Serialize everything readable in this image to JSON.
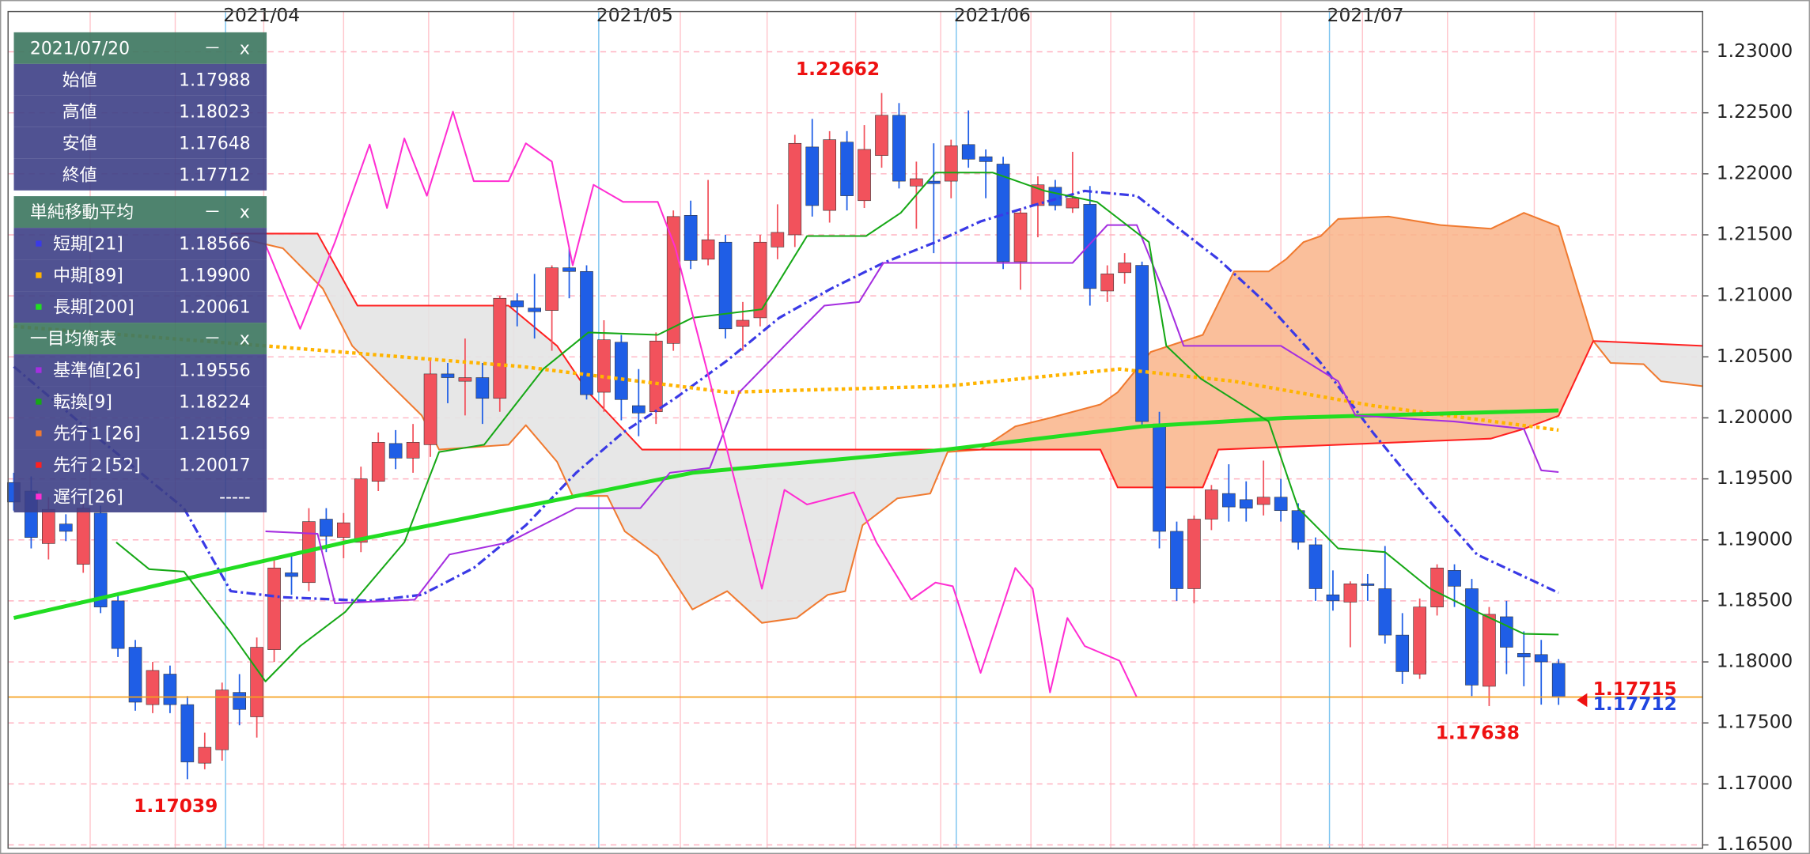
{
  "chart_data": {
    "type": "candlestick",
    "xlim": [
      -0.33,
      97.3
    ],
    "ylim": [
      1.16473,
      1.2333
    ],
    "yticks": [
      {
        "value": 1.165,
        "label": "1.16500"
      },
      {
        "value": 1.17,
        "label": "1.17000"
      },
      {
        "value": 1.175,
        "label": "1.17500"
      },
      {
        "value": 1.18,
        "label": "1.18000"
      },
      {
        "value": 1.185,
        "label": "1.18500"
      },
      {
        "value": 1.19,
        "label": "1.19000"
      },
      {
        "value": 1.195,
        "label": "1.19500"
      },
      {
        "value": 1.2,
        "label": "1.20000"
      },
      {
        "value": 1.205,
        "label": "1.20500"
      },
      {
        "value": 1.21,
        "label": "1.21000"
      },
      {
        "value": 1.215,
        "label": "1.21500"
      },
      {
        "value": 1.22,
        "label": "1.22000"
      },
      {
        "value": 1.225,
        "label": "1.22500"
      },
      {
        "value": 1.23,
        "label": "1.23000"
      }
    ],
    "xticks": [
      {
        "value": 12.2,
        "label": "2021/04"
      },
      {
        "value": 33.7,
        "label": "2021/05"
      },
      {
        "value": 54.3,
        "label": "2021/06"
      },
      {
        "value": 75.8,
        "label": "2021/07"
      }
    ],
    "xgrid": [
      4.4,
      9.3,
      14.4,
      19.0,
      23.9,
      28.8,
      38.4,
      43.4,
      48.5,
      53.4,
      58.6,
      63.2,
      68.0,
      73.0,
      77.7,
      82.6,
      87.6,
      92.3
    ],
    "grid": true,
    "up_color": "#f2525c",
    "down_color": "#1f5ee6",
    "open": [
      1.1947,
      1.194,
      1.1897,
      1.1913,
      1.188,
      1.1922,
      1.185,
      1.1812,
      1.1765,
      1.179,
      1.1765,
      1.1717,
      1.1728,
      1.1775,
      1.1755,
      1.181,
      1.1873,
      1.1865,
      1.1917,
      1.1902,
      1.1898,
      1.1948,
      1.1979,
      1.1967,
      1.1978,
      1.2036,
      1.203,
      1.2033,
      1.2016,
      1.2096,
      1.209,
      1.2088,
      1.2123,
      1.212,
      1.2021,
      1.2062,
      1.201,
      1.2005,
      1.2061,
      1.2166,
      1.213,
      1.2144,
      1.2075,
      1.2082,
      1.214,
      1.215,
      1.2222,
      1.217,
      1.2226,
      1.2178,
      1.2215,
      1.2248,
      1.219,
      1.2194,
      1.2194,
      1.2224,
      1.2214,
      1.2208,
      1.2128,
      1.2174,
      1.2189,
      1.2172,
      1.2175,
      1.2104,
      1.2119,
      1.2125,
      1.1995,
      1.1907,
      1.186,
      1.1917,
      1.1938,
      1.1933,
      1.1929,
      1.1935,
      1.1924,
      1.1896,
      1.1855,
      1.1849,
      1.1864,
      1.186,
      1.1822,
      1.179,
      1.1845,
      1.1875,
      1.186,
      1.178,
      1.1837,
      1.1807,
      1.1806,
      1.17988
    ],
    "high": [
      1.1955,
      1.1952,
      1.1935,
      1.1921,
      1.1935,
      1.1928,
      1.1856,
      1.1818,
      1.18,
      1.1797,
      1.1772,
      1.1742,
      1.1783,
      1.179,
      1.182,
      1.1885,
      1.1887,
      1.1926,
      1.1926,
      1.1922,
      1.196,
      1.1988,
      1.199,
      1.1995,
      1.2048,
      1.2045,
      1.2065,
      1.2045,
      1.21,
      1.2102,
      1.2118,
      1.2125,
      1.214,
      1.2125,
      1.208,
      1.2068,
      1.204,
      1.207,
      1.217,
      1.2178,
      1.2195,
      1.215,
      1.2095,
      1.215,
      1.2175,
      1.2232,
      1.2245,
      1.2235,
      1.2235,
      1.224,
      1.22662,
      1.2258,
      1.221,
      1.2225,
      1.2228,
      1.2252,
      1.222,
      1.2214,
      1.2172,
      1.2198,
      1.2195,
      1.2218,
      1.219,
      1.2125,
      1.2135,
      1.2128,
      1.2005,
      1.1915,
      1.192,
      1.1945,
      1.1962,
      1.1948,
      1.1965,
      1.195,
      1.193,
      1.1902,
      1.1875,
      1.1866,
      1.1872,
      1.1895,
      1.184,
      1.1852,
      1.188,
      1.188,
      1.1868,
      1.1845,
      1.185,
      1.1825,
      1.1818,
      1.18023
    ],
    "low": [
      1.1924,
      1.1893,
      1.1884,
      1.1899,
      1.1873,
      1.184,
      1.1804,
      1.176,
      1.1758,
      1.1758,
      1.17039,
      1.1712,
      1.1719,
      1.1748,
      1.1738,
      1.18,
      1.1855,
      1.1858,
      1.189,
      1.1885,
      1.189,
      1.194,
      1.1958,
      1.1955,
      1.1968,
      1.2012,
      1.2002,
      1.1995,
      1.2005,
      1.2075,
      1.2065,
      1.2055,
      1.2098,
      1.2015,
      1.2005,
      1.1998,
      1.1985,
      1.1995,
      1.2055,
      1.2122,
      1.2125,
      1.2065,
      1.2055,
      1.2075,
      1.213,
      1.214,
      1.2165,
      1.216,
      1.217,
      1.2172,
      1.2205,
      1.2188,
      1.2155,
      1.2135,
      1.218,
      1.2205,
      1.218,
      1.2122,
      1.2105,
      1.2148,
      1.217,
      1.2168,
      1.2092,
      1.2095,
      1.211,
      1.1992,
      1.1893,
      1.185,
      1.1848,
      1.1908,
      1.1915,
      1.1915,
      1.192,
      1.1915,
      1.1892,
      1.185,
      1.1842,
      1.1812,
      1.185,
      1.1815,
      1.1782,
      1.1786,
      1.1838,
      1.1845,
      1.1772,
      1.17638,
      1.179,
      1.178,
      1.1765,
      1.17648
    ],
    "close": [
      1.1931,
      1.1902,
      1.1925,
      1.1907,
      1.1926,
      1.1845,
      1.1811,
      1.1767,
      1.1793,
      1.1765,
      1.1718,
      1.173,
      1.1777,
      1.1761,
      1.1812,
      1.1877,
      1.187,
      1.1915,
      1.1903,
      1.1914,
      1.195,
      1.198,
      1.1967,
      1.198,
      1.2036,
      1.2033,
      1.2033,
      1.2016,
      1.2098,
      1.2091,
      1.2087,
      1.2123,
      1.212,
      1.2019,
      1.2064,
      1.2015,
      1.2004,
      1.2063,
      1.2165,
      1.2129,
      1.2146,
      1.2073,
      1.208,
      1.2144,
      1.2152,
      1.2225,
      1.2174,
      1.2228,
      1.2182,
      1.222,
      1.2248,
      1.2194,
      1.2196,
      1.2192,
      1.2223,
      1.2212,
      1.221,
      1.2128,
      1.2168,
      1.2191,
      1.2174,
      1.218,
      1.2106,
      1.2118,
      1.2127,
      1.1997,
      1.1907,
      1.186,
      1.1917,
      1.1941,
      1.1927,
      1.1926,
      1.1935,
      1.1924,
      1.1898,
      1.186,
      1.185,
      1.1864,
      1.1863,
      1.1822,
      1.1792,
      1.1845,
      1.1877,
      1.1862,
      1.1781,
      1.1839,
      1.1812,
      1.1804,
      1.18,
      1.17712
    ],
    "series": [
      {
        "name": "短期[21]",
        "color": "#3a3ae6",
        "style": "dashdot",
        "x": [
          0,
          4.9,
          9.8,
          12.5,
          15.5,
          20.5,
          23.5,
          26.5,
          29.5,
          32.4,
          35.1,
          38.1,
          41.1,
          44.1,
          47.1,
          50.1,
          53.1,
          55.7,
          58.7,
          61.7,
          64.7,
          66.4,
          69.4,
          72.3,
          75.3,
          78.3,
          81.3,
          84.3,
          87.0,
          89
        ],
        "values": [
          1.2042,
          1.1983,
          1.1926,
          1.1858,
          1.1853,
          1.185,
          1.1855,
          1.1877,
          1.1912,
          1.1955,
          1.1988,
          1.2016,
          1.2047,
          1.2082,
          1.2106,
          1.2127,
          1.2144,
          1.2161,
          1.2174,
          1.2186,
          1.2182,
          1.2163,
          1.213,
          1.2092,
          1.2045,
          1.1988,
          1.1936,
          1.1888,
          1.187,
          1.18566
        ]
      },
      {
        "name": "中期[89]",
        "color": "#ffb400",
        "style": "dotted",
        "x": [
          0,
          14.5,
          29.3,
          41.1,
          53.7,
          63.7,
          70.3,
          78.3,
          89
        ],
        "values": [
          1.2075,
          1.2059,
          1.2042,
          1.2021,
          1.2026,
          1.204,
          1.203,
          1.201,
          1.199
        ]
      },
      {
        "name": "長期[200]",
        "color": "#22dd22",
        "style": "bold",
        "x": [
          0,
          19.1,
          39.1,
          53.7,
          65.0,
          73.3,
          89
        ],
        "values": [
          1.1836,
          1.1898,
          1.1955,
          1.1974,
          1.1993,
          1.2,
          1.20061
        ]
      },
      {
        "name": "基準値[26]",
        "color": "#a52ee0",
        "style": "solid",
        "x": [
          14.5,
          17.5,
          18.5,
          23.1,
          25.1,
          28.5,
          32.4,
          36.1,
          37.8,
          40.1,
          41.8,
          44.4,
          46.7,
          48.7,
          50.1,
          61.0,
          63.0,
          64.7,
          66.4,
          67.4,
          73.0,
          76.3,
          77.3,
          83.0,
          87.0,
          88.0,
          89
        ],
        "values": [
          1.1907,
          1.1905,
          1.1848,
          1.1851,
          1.1888,
          1.1898,
          1.1926,
          1.1926,
          1.1955,
          1.1959,
          1.2021,
          1.2059,
          1.2092,
          1.2095,
          1.2127,
          1.2127,
          1.2158,
          1.2158,
          1.2098,
          1.2059,
          1.2059,
          1.203,
          1.2002,
          1.1997,
          1.1991,
          1.1957,
          1.19556
        ]
      },
      {
        "name": "転換[9]",
        "color": "#16a816",
        "style": "solid",
        "x": [
          5.9,
          7.8,
          9.8,
          12.5,
          14.5,
          16.5,
          19.1,
          22.5,
          24.5,
          27.1,
          30.5,
          33.1,
          37.1,
          39.1,
          43.1,
          45.7,
          49.1,
          51.1,
          53.1,
          56.4,
          59.4,
          62.4,
          65.4,
          66.4,
          68.4,
          72.3,
          74.0,
          76.3,
          79.0,
          81.6,
          84.3,
          87.0,
          89
        ],
        "values": [
          1.1898,
          1.1876,
          1.1874,
          1.1824,
          1.1784,
          1.1813,
          1.1841,
          1.1898,
          1.1972,
          1.1978,
          1.204,
          1.207,
          1.2068,
          1.2082,
          1.2089,
          1.2149,
          1.2149,
          1.2168,
          1.2201,
          1.2201,
          1.2186,
          1.2177,
          1.2144,
          1.2059,
          1.2032,
          1.1997,
          1.1926,
          1.1893,
          1.189,
          1.186,
          1.1841,
          1.1823,
          1.18224
        ]
      },
      {
        "name": "先行１[26]",
        "color": "#f07a30",
        "style": "solid",
        "x": [
          12.5,
          15.5,
          17.8,
          19.5,
          21.5,
          23.5,
          24.5,
          26.5,
          28.5,
          29.5,
          31.3,
          32.2,
          34.2,
          35.2,
          37.1,
          39.1,
          41.1,
          43.1,
          45.1,
          46.9,
          47.9,
          48.9,
          50.9,
          52.8,
          53.8,
          55.7,
          57.7,
          59.7,
          62.6,
          63.6,
          65.5,
          68.5,
          70.3,
          72.3,
          73.3,
          74.3,
          75.3,
          76.3,
          79.2,
          82.2,
          85.1,
          87.0,
          89,
          91.0,
          92.0,
          93.9,
          94.9,
          97.3
        ],
        "values": [
          1.2149,
          1.2139,
          1.2106,
          1.2059,
          1.203,
          1.2002,
          1.1974,
          1.1976,
          1.1978,
          1.1994,
          1.1964,
          1.1936,
          1.1936,
          1.1907,
          1.1887,
          1.1843,
          1.1858,
          1.1832,
          1.1836,
          1.1855,
          1.1858,
          1.1912,
          1.1934,
          1.1938,
          1.1972,
          1.1974,
          1.1993,
          1.2,
          1.2011,
          1.2021,
          1.2054,
          1.2068,
          1.212,
          1.212,
          1.213,
          1.2144,
          1.2149,
          1.2163,
          1.2165,
          1.2158,
          1.2155,
          1.2168,
          1.21569,
          1.2063,
          1.2045,
          1.2044,
          1.203,
          1.2026
        ]
      },
      {
        "name": "先行２[52]",
        "color": "#ff2020",
        "style": "solid",
        "x": [
          12.5,
          17.5,
          19.8,
          28.5,
          31.3,
          33.1,
          36.2,
          62.6,
          63.6,
          68.5,
          69.4,
          85.1,
          87.0,
          89,
          91.0,
          97.3
        ],
        "values": [
          1.2151,
          1.2151,
          1.2092,
          1.2092,
          1.2059,
          1.2021,
          1.1974,
          1.1974,
          1.1943,
          1.1943,
          1.1974,
          1.1983,
          1.1991,
          1.20017,
          1.2063,
          1.2059
        ]
      },
      {
        "name": "遅行[26]",
        "color": "#ff2ed2",
        "style": "solid",
        "x": [
          14.5,
          16.5,
          18.5,
          20.5,
          21.5,
          22.5,
          23.8,
          25.3,
          26.5,
          28.5,
          29.5,
          31.0,
          32.2,
          33.4,
          35.1,
          37.1,
          38.1,
          40.1,
          43.1,
          44.4,
          45.7,
          48.4,
          49.7,
          51.7,
          53.1,
          54.1,
          55.7,
          57.7,
          58.7,
          59.7,
          60.7,
          61.7,
          63.7,
          64.7
        ],
        "values": [
          1.2142,
          1.2073,
          1.2144,
          1.2224,
          1.2172,
          1.2229,
          1.2182,
          1.2251,
          1.2194,
          1.2194,
          1.2225,
          1.221,
          1.2125,
          1.2191,
          1.2177,
          1.2177,
          1.214,
          1.203,
          1.186,
          1.1941,
          1.1929,
          1.1939,
          1.1898,
          1.1851,
          1.1865,
          1.1862,
          1.1791,
          1.1877,
          1.186,
          1.1775,
          1.1836,
          1.1813,
          1.1801,
          1.1771
        ]
      }
    ],
    "cloud_colors": {
      "bullish": "#f9b48a",
      "bearish": "#e4e4e4"
    },
    "extremes": [
      {
        "x": 50,
        "value": 1.22662
      },
      {
        "x": 10,
        "value": 1.17039
      },
      {
        "x": 85,
        "value": 1.17638
      }
    ],
    "extreme_color": "#ee1111",
    "price_lines": [
      {
        "value": 1.17715,
        "color": "#ee1111"
      },
      {
        "value": 1.17712,
        "color": "#2046e0"
      }
    ],
    "price_line_color": "#f5a020",
    "panel": {
      "buttons": [
        "－",
        "x"
      ],
      "date": "2021/07/20",
      "ohlc": [
        {
          "label": "始値",
          "value": "1.17988"
        },
        {
          "label": "高値",
          "value": "1.18023"
        },
        {
          "label": "安値",
          "value": "1.17648"
        },
        {
          "label": "終値",
          "value": "1.17712"
        }
      ],
      "sma_title": "単純移動平均",
      "sma_values": [
        "1.18566",
        "1.19900",
        "1.20061"
      ],
      "ichimoku_title": "一目均衡表",
      "ichimoku_values": [
        "1.19556",
        "1.18224",
        "1.21569",
        "1.20017",
        "-----"
      ]
    }
  }
}
